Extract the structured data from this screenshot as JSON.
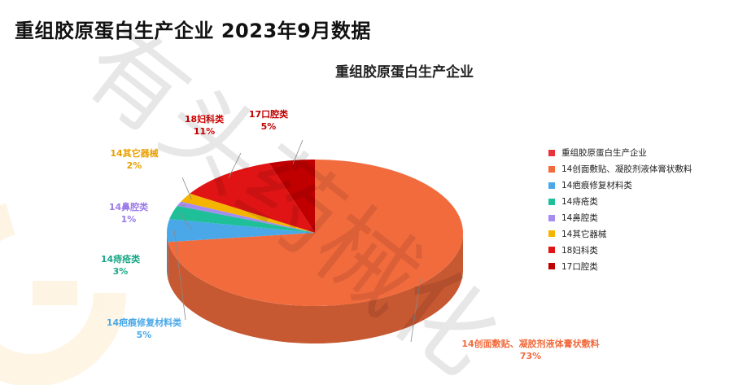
{
  "header": {
    "title": "重组胶原蛋白生产企业  2023年9月数据"
  },
  "chart_data": {
    "type": "pie",
    "title": "重组胶原蛋白生产企业",
    "legend_position": "right",
    "categories": [
      "重组胶原蛋白生产企业",
      "14创面敷贴、凝胶剂液体膏状敷料",
      "14疤痕修复材料类",
      "14痔疮类",
      "14鼻腔类",
      "14其它器械",
      "18妇科类",
      "17口腔类"
    ],
    "values": [
      0,
      73,
      5,
      3,
      1,
      2,
      11,
      5
    ],
    "value_labels": [
      "",
      "73%",
      "5%",
      "3%",
      "1%",
      "2%",
      "11%",
      "5%"
    ],
    "colors": [
      "#e8333a",
      "#f26b3d",
      "#4aa8e8",
      "#1fbf9a",
      "#a58cf0",
      "#f4b400",
      "#e01414",
      "#c00000"
    ],
    "label_colors": [
      "#e8333a",
      "#f26b3d",
      "#4aa8e8",
      "#1aa888",
      "#9b7be8",
      "#e8a000",
      "#d00000",
      "#c00000"
    ]
  },
  "watermark": {
    "text": "有头药械化",
    "logo_letter": "G"
  }
}
